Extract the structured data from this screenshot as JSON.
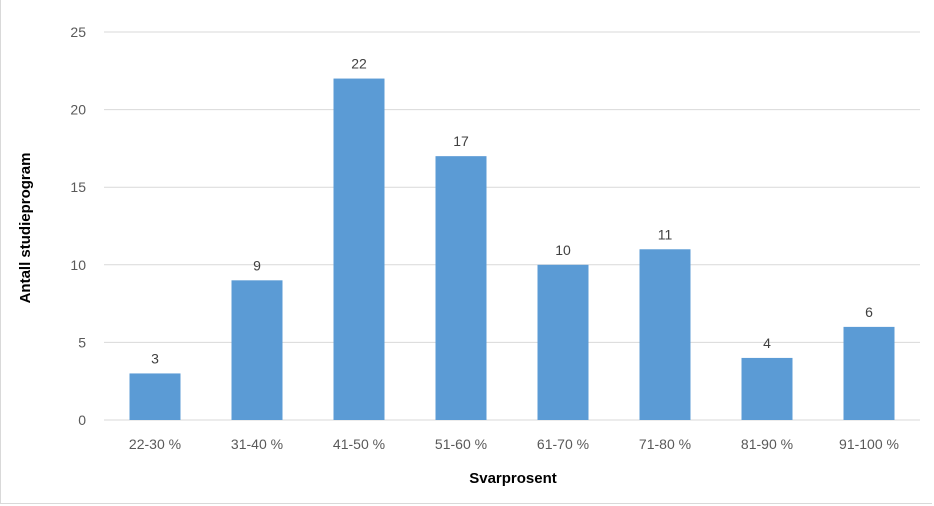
{
  "chart_data": {
    "type": "bar",
    "title": "",
    "xlabel": "Svarprosent",
    "ylabel": "Antall studieprogram",
    "categories": [
      "22-30 %",
      "31-40 %",
      "41-50 %",
      "51-60 %",
      "61-70 %",
      "71-80 %",
      "81-90 %",
      "91-100 %"
    ],
    "values": [
      3,
      9,
      22,
      17,
      10,
      11,
      4,
      6
    ],
    "ylim": [
      0,
      25
    ],
    "yticks": [
      0,
      5,
      10,
      15,
      20,
      25
    ],
    "grid": true,
    "legend": "none",
    "bar_color": "#5b9bd5",
    "grid_color": "#d9d9d9"
  }
}
